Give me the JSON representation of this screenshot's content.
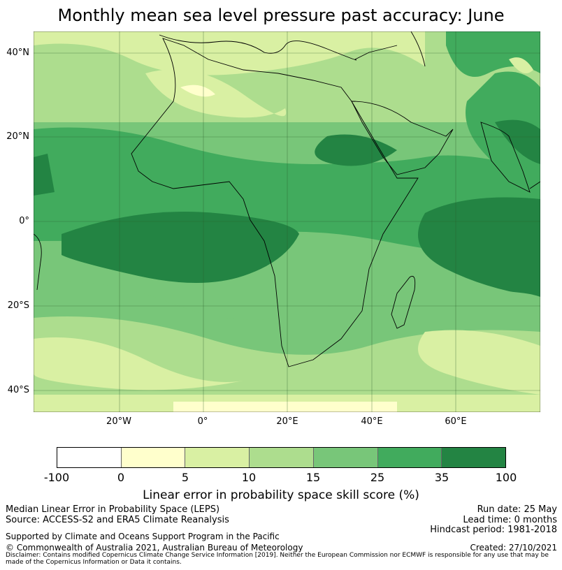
{
  "title": "Monthly mean sea level pressure past accuracy: June",
  "map": {
    "lat_labels": [
      "40°N",
      "20°N",
      "0°",
      "20°S",
      "40°S"
    ],
    "lon_labels": [
      "20°W",
      "0°",
      "20°E",
      "40°E",
      "60°E"
    ]
  },
  "colorbar": {
    "label": "Linear error in probability space skill score (%)",
    "ticks": [
      "-100",
      "0",
      "5",
      "10",
      "15",
      "25",
      "35",
      "100"
    ],
    "colors": [
      "#ffffff",
      "#ffffcc",
      "#d9f0a3",
      "#addd8e",
      "#78c679",
      "#41ab5d",
      "#238443"
    ]
  },
  "footer": {
    "line1": "Median Linear Error in Probability Space (LEPS)",
    "line2": "Source: ACCESS-S2 and ERA5 Climate Reanalysis",
    "support": "Supported by Climate and Oceans Support Program in the Pacific",
    "copyright": "© Commonwealth of Australia 2021, Australian Bureau of Meteorology",
    "disclaimer": "Disclaimer: Contains modified Copernicus Climate Change Service Information [2019]. Neither the European Commission nor ECMWF is responsible for any use that may be made of the Copernicus Information or Data it contains.",
    "run_date": "Run date: 25 May",
    "lead_time": "Lead time: 0 months",
    "hindcast": "Hindcast period: 1981-2018",
    "created": "Created: 27/10/2021"
  }
}
